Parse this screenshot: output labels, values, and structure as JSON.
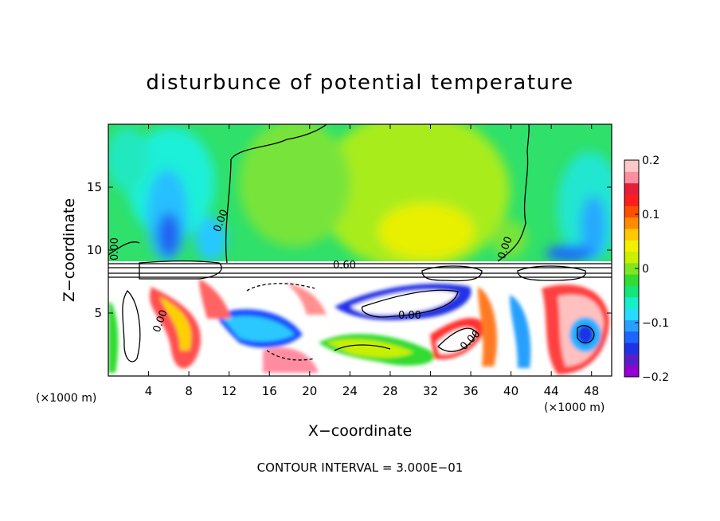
{
  "chart_data": {
    "type": "heatmap",
    "title": "disturbunce of potential temperature",
    "xlabel": "X−coordinate",
    "ylabel": "Z−coordinate",
    "x_unit_left": "(×1000 m)",
    "x_unit_right": "(×1000 m)",
    "xlim": [
      0,
      50
    ],
    "ylim": [
      0,
      20
    ],
    "x_ticks": [
      "4",
      "8",
      "12",
      "16",
      "20",
      "24",
      "28",
      "32",
      "36",
      "40",
      "44",
      "48"
    ],
    "y_ticks": [
      "5",
      "10",
      "15"
    ],
    "colorbar": {
      "range": [
        -0.2,
        0.2
      ],
      "tick_labels": [
        "0.2",
        "0.1",
        "0",
        "−0.1",
        "−0.2"
      ],
      "colors": [
        "#9400d3",
        "#5a1ec8",
        "#1e32e6",
        "#1e64ff",
        "#28a0ff",
        "#28dcff",
        "#14f0c8",
        "#14e678",
        "#32dc32",
        "#82e61e",
        "#c8f000",
        "#f0f000",
        "#ffc800",
        "#ff8c00",
        "#ff5000",
        "#ff1e1e",
        "#e61e3c",
        "#ff8ca0",
        "#ffc8c8"
      ]
    },
    "contour_labels": [
      "0.00",
      "0.00",
      "0.00",
      "0.60",
      "0.00",
      "0.00",
      "0.00"
    ],
    "footer": "CONTOUR INTERVAL = 3.000E−01"
  }
}
